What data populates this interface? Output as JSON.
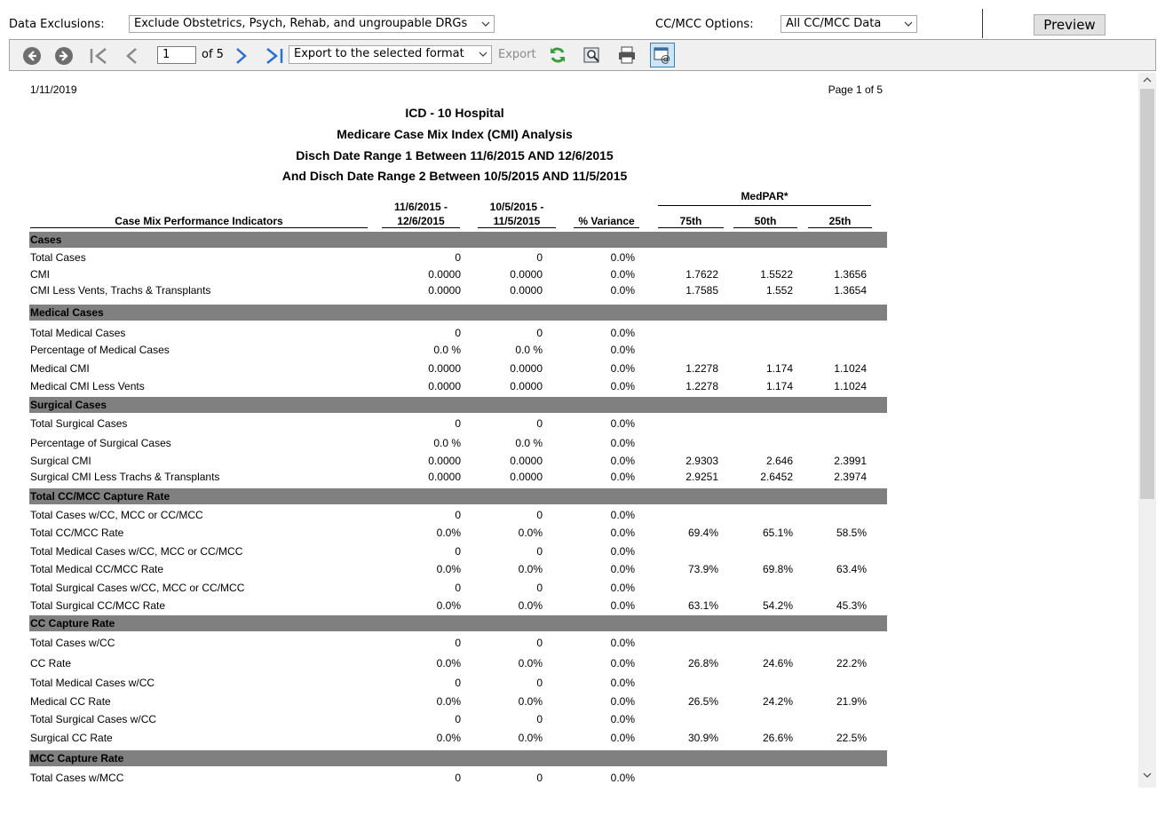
{
  "filters": {
    "exclusions_label": "Data Exclusions:",
    "exclusions_value": "Exclude Obstetrics, Psych, Rehab, and ungroupable DRGs",
    "ccmcc_label": "CC/MCC Options:",
    "ccmcc_value": "All CC/MCC Data",
    "preview_label": "Preview"
  },
  "toolbar": {
    "page_number": "1",
    "of_pages": "of 5",
    "export_format": "Export to the selected format",
    "export_label": "Export",
    "icons": [
      "back-icon",
      "forward-icon",
      "first-page-icon",
      "previous-page-icon",
      "next-page-icon",
      "last-page-icon",
      "refresh-icon",
      "find-icon",
      "print-icon",
      "email-icon"
    ]
  },
  "report": {
    "date": "1/11/2019",
    "page": "Page 1 of 5",
    "title1": "ICD - 10 Hospital",
    "title2": "Medicare Case Mix Index (CMI) Analysis",
    "title3": "Disch Date Range 1 Between 11/6/2015 AND 12/6/2015",
    "title4": "And Disch Date Range 2 Between 10/5/2015 AND 11/5/2015",
    "medpar": "MedPAR*",
    "col_indicators": "Case Mix Performance Indicators",
    "col_range1_a": "11/6/2015 -",
    "col_range1_b": "12/6/2015",
    "col_range2_a": "10/5/2015 -",
    "col_range2_b": "11/5/2015",
    "col_variance": "% Variance",
    "col_75": "75th",
    "col_50": "50th",
    "col_25": "25th",
    "sections": {
      "cases": "Cases",
      "medical": "Medical Cases",
      "surgical": "Surgical Cases",
      "ccmcc": "Total CC/MCC Capture Rate",
      "cc": "CC Capture Rate",
      "mcc": "MCC Capture Rate"
    },
    "rows": [
      {
        "label": "Total Cases",
        "r1": "0",
        "r2": "0",
        "var": "0.0%",
        "p75": "",
        "p50": "",
        "p25": ""
      },
      {
        "label": "CMI",
        "r1": "0.0000",
        "r2": "0.0000",
        "var": "0.0%",
        "p75": "1.7622",
        "p50": "1.5522",
        "p25": "1.3656"
      },
      {
        "label": "CMI Less Vents, Trachs & Transplants",
        "r1": "0.0000",
        "r2": "0.0000",
        "var": "0.0%",
        "p75": "1.7585",
        "p50": "1.552",
        "p25": "1.3654"
      },
      {
        "label": "Total Medical Cases",
        "r1": "0",
        "r2": "0",
        "var": "0.0%",
        "p75": "",
        "p50": "",
        "p25": ""
      },
      {
        "label": "Percentage of Medical Cases",
        "r1": "0.0 %",
        "r2": "0.0 %",
        "var": "0.0%",
        "p75": "",
        "p50": "",
        "p25": ""
      },
      {
        "label": "Medical CMI",
        "r1": "0.0000",
        "r2": "0.0000",
        "var": "0.0%",
        "p75": "1.2278",
        "p50": "1.174",
        "p25": "1.1024"
      },
      {
        "label": "Medical CMI Less Vents",
        "r1": "0.0000",
        "r2": "0.0000",
        "var": "0.0%",
        "p75": "1.2278",
        "p50": "1.174",
        "p25": "1.1024"
      },
      {
        "label": "Total Surgical Cases",
        "r1": "0",
        "r2": "0",
        "var": "0.0%",
        "p75": "",
        "p50": "",
        "p25": ""
      },
      {
        "label": "Percentage of Surgical Cases",
        "r1": "0.0 %",
        "r2": "0.0 %",
        "var": "0.0%",
        "p75": "",
        "p50": "",
        "p25": ""
      },
      {
        "label": "Surgical CMI",
        "r1": "0.0000",
        "r2": "0.0000",
        "var": "0.0%",
        "p75": "2.9303",
        "p50": "2.646",
        "p25": "2.3991"
      },
      {
        "label": "Surgical CMI Less Trachs & Transplants",
        "r1": "0.0000",
        "r2": "0.0000",
        "var": "0.0%",
        "p75": "2.9251",
        "p50": "2.6452",
        "p25": "2.3974"
      },
      {
        "label": "Total Cases w/CC, MCC or CC/MCC",
        "r1": "0",
        "r2": "0",
        "var": "0.0%",
        "p75": "",
        "p50": "",
        "p25": ""
      },
      {
        "label": "Total CC/MCC Rate",
        "r1": "0.0%",
        "r2": "0.0%",
        "var": "0.0%",
        "p75": "69.4%",
        "p50": "65.1%",
        "p25": "58.5%"
      },
      {
        "label": "Total Medical Cases w/CC, MCC or CC/MCC",
        "r1": "0",
        "r2": "0",
        "var": "0.0%",
        "p75": "",
        "p50": "",
        "p25": ""
      },
      {
        "label": "Total Medical CC/MCC Rate",
        "r1": "0.0%",
        "r2": "0.0%",
        "var": "0.0%",
        "p75": "73.9%",
        "p50": "69.8%",
        "p25": "63.4%"
      },
      {
        "label": "Total Surgical Cases w/CC, MCC or CC/MCC",
        "r1": "0",
        "r2": "0",
        "var": "0.0%",
        "p75": "",
        "p50": "",
        "p25": ""
      },
      {
        "label": "Total Surgical CC/MCC Rate",
        "r1": "0.0%",
        "r2": "0.0%",
        "var": "0.0%",
        "p75": "63.1%",
        "p50": "54.2%",
        "p25": "45.3%"
      },
      {
        "label": "Total Cases w/CC",
        "r1": "0",
        "r2": "0",
        "var": "0.0%",
        "p75": "",
        "p50": "",
        "p25": ""
      },
      {
        "label": "CC Rate",
        "r1": "0.0%",
        "r2": "0.0%",
        "var": "0.0%",
        "p75": "26.8%",
        "p50": "24.6%",
        "p25": "22.2%"
      },
      {
        "label": "Total Medical Cases w/CC",
        "r1": "0",
        "r2": "0",
        "var": "0.0%",
        "p75": "",
        "p50": "",
        "p25": ""
      },
      {
        "label": "Medical CC Rate",
        "r1": "0.0%",
        "r2": "0.0%",
        "var": "0.0%",
        "p75": "26.5%",
        "p50": "24.2%",
        "p25": "21.9%"
      },
      {
        "label": "Total Surgical Cases w/CC",
        "r1": "0",
        "r2": "0",
        "var": "0.0%",
        "p75": "",
        "p50": "",
        "p25": ""
      },
      {
        "label": "Surgical CC Rate",
        "r1": "0.0%",
        "r2": "0.0%",
        "var": "0.0%",
        "p75": "30.9%",
        "p50": "26.6%",
        "p25": "22.5%"
      },
      {
        "label": "Total Cases w/MCC",
        "r1": "0",
        "r2": "0",
        "var": "0.0%",
        "p75": "",
        "p50": "",
        "p25": ""
      }
    ]
  }
}
